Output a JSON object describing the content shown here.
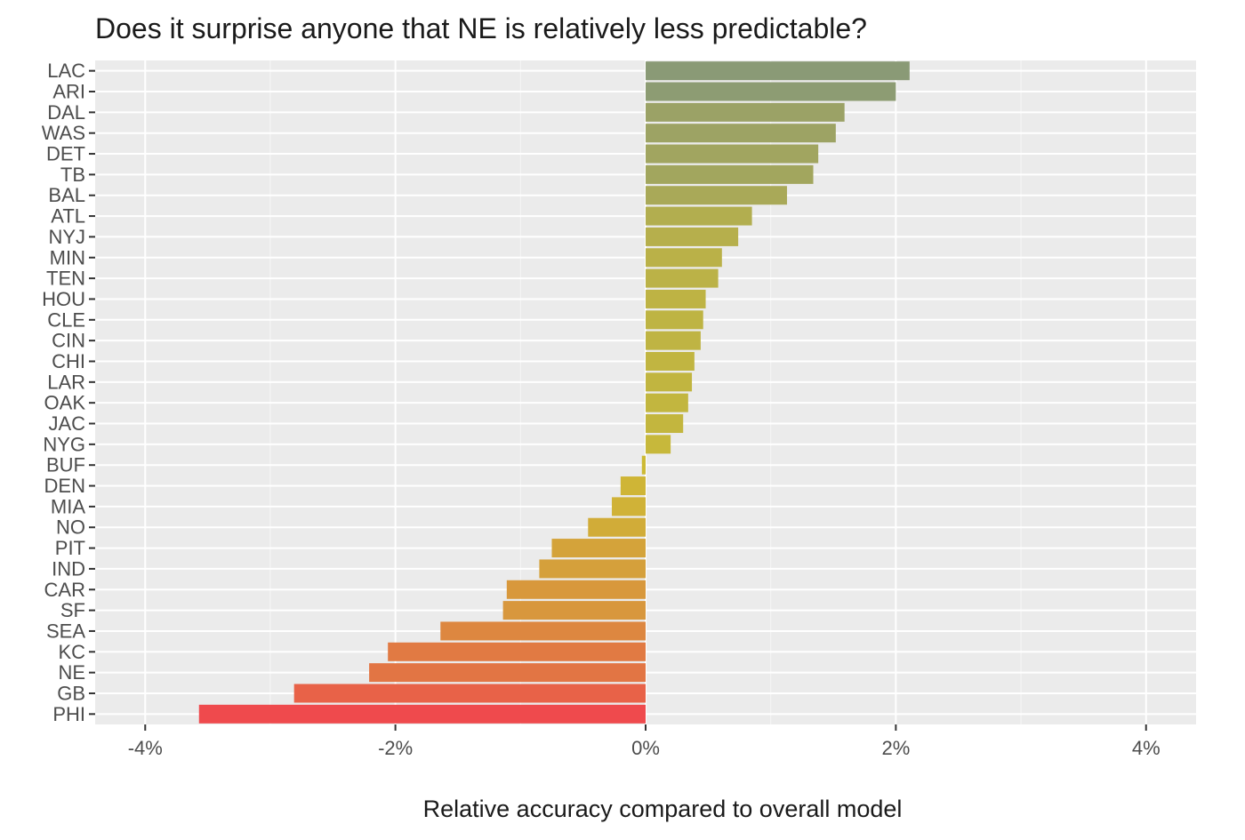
{
  "chart_data": {
    "type": "bar",
    "orientation": "horizontal",
    "title": "Does it surprise anyone that NE is relatively less predictable?",
    "xlabel": "Relative accuracy compared to overall model",
    "ylabel": "",
    "xlim": [
      -4.4,
      4.4
    ],
    "x_ticks": [
      -4,
      -2,
      0,
      2,
      4
    ],
    "x_tick_labels": [
      "-4%",
      "-2%",
      "0%",
      "2%",
      "4%"
    ],
    "value_unit": "%",
    "grid": true,
    "legend": "none",
    "panel_background": "#ebebeb",
    "gridline_color": "#ffffff",
    "color_scale": {
      "low": "#ef4a4d",
      "mid": "#cdbb35",
      "high": "#8a9a76"
    },
    "categories": [
      "LAC",
      "ARI",
      "DAL",
      "WAS",
      "DET",
      "TB",
      "BAL",
      "ATL",
      "NYJ",
      "MIN",
      "TEN",
      "HOU",
      "CLE",
      "CIN",
      "CHI",
      "LAR",
      "OAK",
      "JAC",
      "NYG",
      "BUF",
      "DEN",
      "MIA",
      "NO",
      "PIT",
      "IND",
      "CAR",
      "SF",
      "SEA",
      "KC",
      "NE",
      "GB",
      "PHI"
    ],
    "values": [
      2.11,
      2.0,
      1.59,
      1.52,
      1.38,
      1.34,
      1.13,
      0.85,
      0.74,
      0.61,
      0.58,
      0.48,
      0.46,
      0.44,
      0.39,
      0.37,
      0.34,
      0.3,
      0.2,
      -0.03,
      -0.2,
      -0.27,
      -0.46,
      -0.75,
      -0.85,
      -1.11,
      -1.14,
      -1.64,
      -2.06,
      -2.21,
      -2.81,
      -3.57
    ]
  }
}
